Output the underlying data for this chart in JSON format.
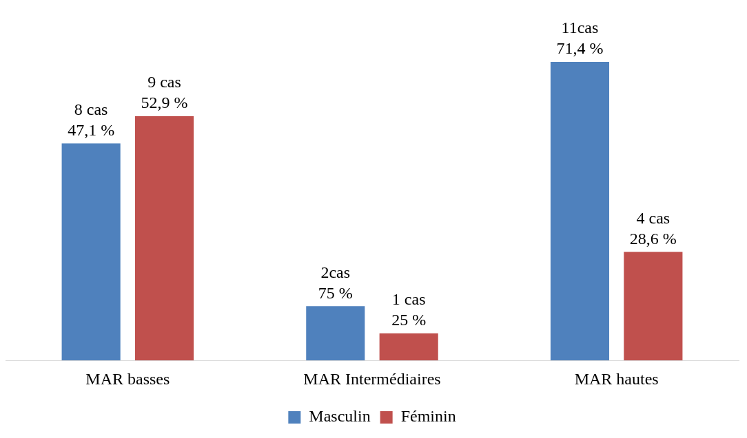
{
  "chart_data": {
    "type": "bar",
    "categories": [
      "MAR basses",
      "MAR Intermédiaires",
      "MAR hautes"
    ],
    "series": [
      {
        "name": "Masculin",
        "color": "#4f81bd",
        "values": [
          8,
          2,
          11
        ],
        "value_labels": [
          "8 cas\n47,1 %",
          "2cas\n75 %",
          "11cas\n71,4 %"
        ]
      },
      {
        "name": "Féminin",
        "color": "#c0504d",
        "values": [
          9,
          1,
          4
        ],
        "value_labels": [
          "9 cas\n52,9 %",
          "1 cas\n25 %",
          "4 cas\n28,6 %"
        ]
      }
    ],
    "legend": "bottom",
    "tick_labels": "x"
  }
}
